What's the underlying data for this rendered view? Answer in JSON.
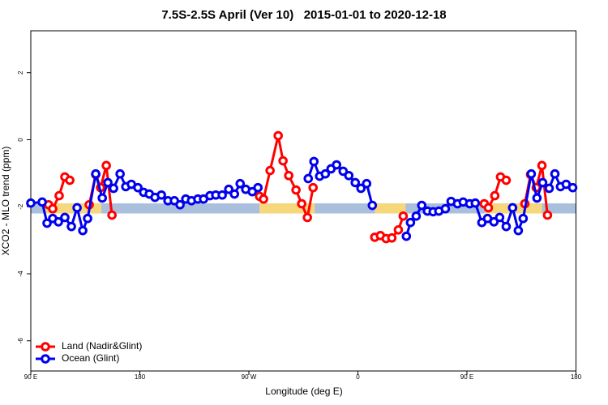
{
  "chart_data": {
    "type": "line",
    "title": "7.5S-2.5S April (Ver 10)   2015-01-01 to 2020-12-18",
    "xlabel": "Longitude (deg E)",
    "ylabel": "XCO2 - MLO trend (ppm)",
    "xlim": [
      90,
      540
    ],
    "ylim": [
      -6.9,
      3.25
    ],
    "xticks": [
      {
        "value": 90,
        "label": "90 E"
      },
      180,
      {
        "value": 270,
        "label": "90 W"
      },
      {
        "value": 360,
        "label": "0"
      },
      {
        "value": 450,
        "label": "90 E"
      },
      {
        "value": 540,
        "label": "180"
      }
    ],
    "yticks": [
      -6,
      -4,
      -2,
      0,
      2
    ],
    "legend": "bottom-left",
    "reference_band": {
      "range": [
        -2.2,
        -1.9
      ],
      "color": "#a9bfdc",
      "land_color": "#f7d77c",
      "land_spans": [
        [
          101.4,
          148.3
        ],
        [
          278.8,
          324.4
        ],
        [
          373.9,
          399.4
        ],
        [
          465,
          512
        ]
      ]
    },
    "series": [
      {
        "name": "Land (Nadir&Glint)",
        "color": "#ff0000",
        "x": [
          104.7,
          108.1,
          113.4,
          118.1,
          122.2,
          null,
          138.2,
          143.6,
          147.6,
          152.3,
          157.0,
          null,
          278.8,
          282.1,
          287.5,
          294.2,
          298.2,
          302.9,
          308.9,
          313.6,
          318.3,
          323.0,
          null,
          373.9,
          378.6,
          383.3,
          388.0,
          393.4,
          397.4,
          null,
          464.3,
          467.7,
          473.0,
          477.7,
          482.4,
          null,
          497.8,
          502.5,
          507.2,
          511.9,
          516.5
        ],
        "values": [
          -1.94,
          -2.06,
          -1.67,
          -1.11,
          -1.21,
          null,
          -1.94,
          -1.04,
          -1.43,
          -0.77,
          -2.25,
          null,
          -1.69,
          -1.77,
          -0.92,
          0.12,
          -0.63,
          -1.07,
          -1.5,
          -1.91,
          -2.32,
          -1.43,
          null,
          -2.91,
          -2.86,
          -2.95,
          -2.93,
          -2.69,
          -2.28,
          null,
          -1.91,
          -2.03,
          -1.67,
          -1.11,
          -1.21,
          null,
          -1.91,
          -1.04,
          -1.43,
          -0.77,
          -2.25
        ]
      },
      {
        "name": "Ocean (Glint)",
        "color": "#0000ee",
        "x": [
          90.0,
          99.4,
          103.4,
          108.1,
          112.8,
          118.1,
          123.5,
          128.2,
          132.9,
          136.9,
          143.6,
          149.0,
          153.6,
          158.3,
          163.7,
          168.4,
          173.0,
          178.4,
          183.1,
          187.8,
          192.5,
          197.8,
          203.2,
          208.5,
          213.2,
          217.9,
          222.6,
          227.9,
          232.6,
          237.9,
          242.7,
          248.0,
          253.4,
          258.1,
          262.8,
          267.4,
          272.8,
          277.5,
          null,
          319.0,
          323.7,
          328.4,
          333.1,
          337.8,
          342.4,
          347.8,
          352.5,
          357.8,
          362.5,
          367.2,
          371.9,
          null,
          400.0,
          403.4,
          408.1,
          412.7,
          417.4,
          422.1,
          426.8,
          432.2,
          436.9,
          442.2,
          446.9,
          452.3,
          456.9,
          462.3,
          467.0,
          472.3,
          477.0,
          482.4,
          487.7,
          492.4,
          496.4,
          503.1,
          507.8,
          512.5,
          517.9,
          522.6,
          527.2,
          531.9,
          537.3
        ],
        "values": [
          -1.89,
          -1.86,
          -2.49,
          -2.35,
          -2.45,
          -2.32,
          -2.59,
          -2.03,
          -2.71,
          -2.35,
          -1.02,
          -1.74,
          -1.28,
          -1.45,
          -1.02,
          -1.4,
          -1.33,
          -1.43,
          -1.57,
          -1.62,
          -1.72,
          -1.65,
          -1.82,
          -1.82,
          -1.94,
          -1.77,
          -1.82,
          -1.77,
          -1.77,
          -1.67,
          -1.65,
          -1.65,
          -1.48,
          -1.62,
          -1.31,
          -1.48,
          -1.55,
          -1.43,
          null,
          -1.16,
          -0.65,
          -1.09,
          -1.02,
          -0.87,
          -0.75,
          -0.94,
          -1.07,
          -1.28,
          -1.45,
          -1.31,
          -1.96,
          null,
          -2.88,
          -2.47,
          -2.28,
          -1.96,
          -2.13,
          -2.15,
          -2.13,
          -2.06,
          -1.84,
          -1.91,
          -1.86,
          -1.91,
          -1.89,
          -2.47,
          -2.35,
          -2.45,
          -2.32,
          -2.59,
          -2.03,
          -2.71,
          -2.35,
          -1.02,
          -1.74,
          -1.28,
          -1.45,
          -1.02,
          -1.4,
          -1.33,
          -1.43
        ]
      }
    ]
  }
}
